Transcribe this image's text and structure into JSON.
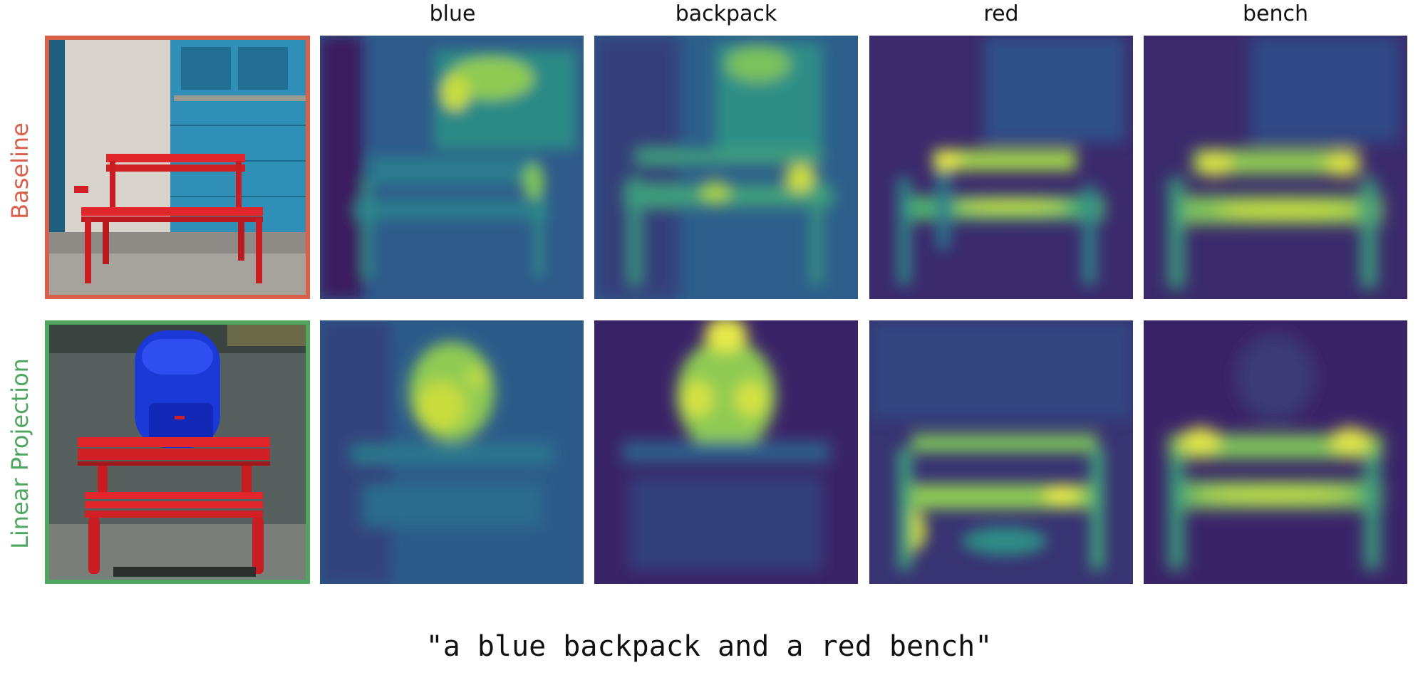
{
  "column_headers": [
    "blue",
    "backpack",
    "red",
    "bench"
  ],
  "rows": [
    {
      "label": "Baseline",
      "color": "#d9604a"
    },
    {
      "label": "Linear Projection",
      "color": "#4fa65f"
    }
  ],
  "caption": "\"a blue backpack and a red bench\"",
  "colormap": {
    "low": "#3b1a5e",
    "mid": "#2a7b8e",
    "high": "#e6e94a"
  }
}
